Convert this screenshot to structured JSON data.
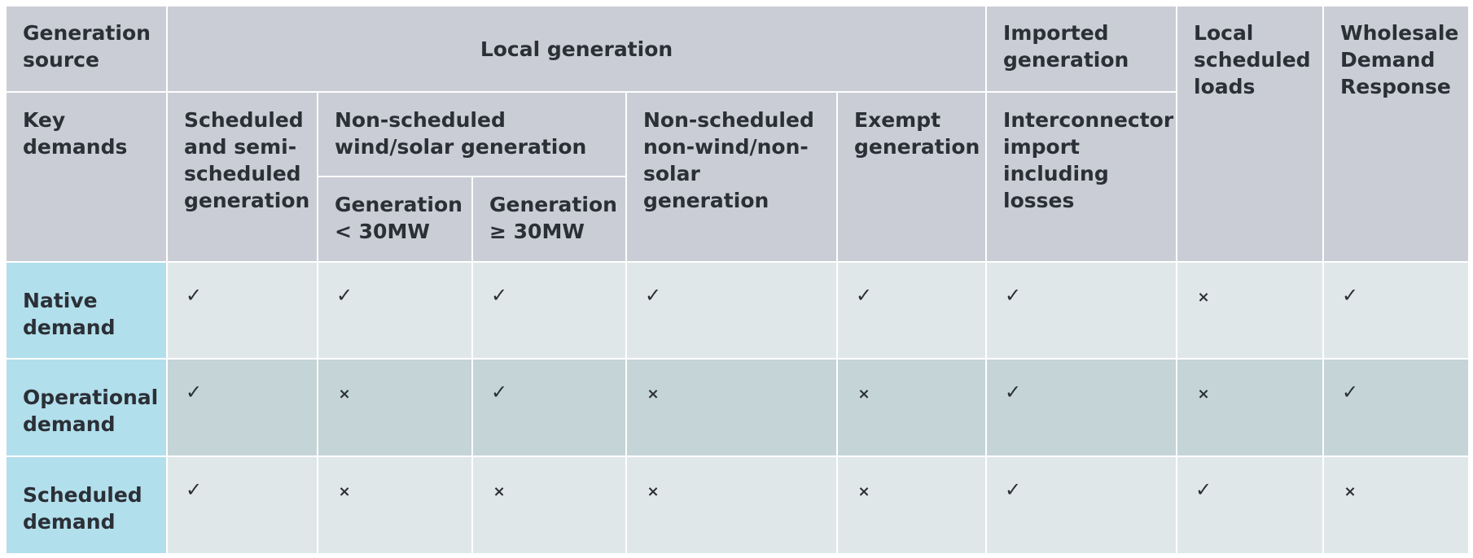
{
  "header": {
    "generation_source": "Generation source",
    "local_generation": "Local generation",
    "imported_generation": "Imported generation",
    "local_scheduled_loads": "Local scheduled loads",
    "wholesale_demand_response": "Wholesale Demand Response",
    "key_demands": "Key demands",
    "scheduled_semi_scheduled": "Scheduled and semi-scheduled generation",
    "non_scheduled_wind_solar": "Non-scheduled wind/solar generation",
    "non_scheduled_non_wind_solar": "Non-scheduled non-wind/non-solar generation",
    "exempt_generation": "Exempt generation",
    "interconnector_import": "Interconnector import including losses",
    "generation_lt_30": "Generation < 30MW",
    "generation_ge_30": "Generation ≥ 30MW"
  },
  "symbols": {
    "check": "✓",
    "cross": "×"
  },
  "rows": [
    {
      "label": "Native demand",
      "cells": [
        "✓",
        "✓",
        "✓",
        "✓",
        "✓",
        "✓",
        "×",
        "✓"
      ]
    },
    {
      "label": "Operational demand",
      "cells": [
        "✓",
        "×",
        "✓",
        "×",
        "×",
        "✓",
        "×",
        "✓"
      ]
    },
    {
      "label": "Scheduled demand",
      "cells": [
        "✓",
        "×",
        "×",
        "×",
        "×",
        "✓",
        "✓",
        "×"
      ]
    }
  ],
  "colors": {
    "header_bg": "#cbcdd6",
    "row_label_bg": "#b2dfec",
    "row_light_bg": "#e0e7e8",
    "row_dark_bg": "#c4d4d7",
    "text": "#2b2f36"
  }
}
